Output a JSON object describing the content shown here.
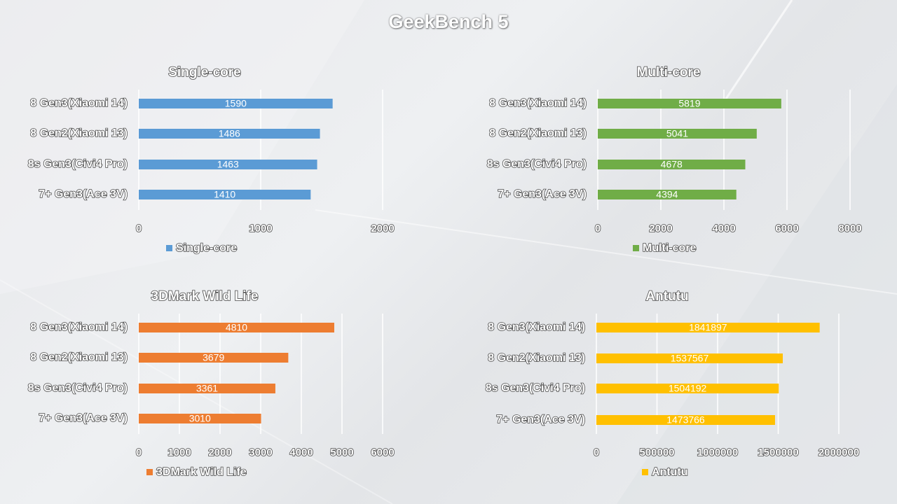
{
  "title": "GeekBench 5",
  "colors": {
    "single": "#5b9bd5",
    "multi": "#70ad47",
    "wildlife": "#ed7d31",
    "antutu": "#ffc000"
  },
  "chart_data": [
    {
      "type": "bar",
      "orientation": "horizontal",
      "title": "Single-core",
      "categories": [
        "8 Gen3(Xiaomi 14)",
        "8 Gen2(Xiaomi 13)",
        "8s Gen3(Civi4 Pro)",
        "7+ Gen3(Ace 3V)"
      ],
      "series": [
        {
          "name": "Single-core",
          "values": [
            1590,
            1486,
            1463,
            1410
          ]
        }
      ],
      "xlim": [
        0,
        2000
      ],
      "ticks": [
        "0",
        "1000",
        "2000"
      ],
      "color": "#5b9bd5",
      "legend": "bottom",
      "grid": true
    },
    {
      "type": "bar",
      "orientation": "horizontal",
      "title": "Multi-core",
      "categories": [
        "8 Gen3(Xiaomi 14)",
        "8 Gen2(Xiaomi 13)",
        "8s Gen3(Civi4 Pro)",
        "7+ Gen3(Ace 3V)"
      ],
      "series": [
        {
          "name": "Multi-core",
          "values": [
            5819,
            5041,
            4678,
            4394
          ]
        }
      ],
      "xlim": [
        0,
        8000
      ],
      "ticks": [
        "0",
        "2000",
        "4000",
        "6000",
        "8000"
      ],
      "color": "#70ad47",
      "legend": "bottom",
      "grid": true
    },
    {
      "type": "bar",
      "orientation": "horizontal",
      "title": "3DMark Wild Life",
      "categories": [
        "8 Gen3(Xiaomi 14)",
        "8 Gen2(Xiaomi 13)",
        "8s Gen3(Civi4 Pro)",
        "7+ Gen3(Ace 3V)"
      ],
      "series": [
        {
          "name": "3DMark Wild Life",
          "values": [
            4810,
            3679,
            3361,
            3010
          ]
        }
      ],
      "xlim": [
        0,
        6000
      ],
      "ticks": [
        "0",
        "1000",
        "2000",
        "3000",
        "4000",
        "5000",
        "6000"
      ],
      "color": "#ed7d31",
      "legend": "bottom",
      "grid": true
    },
    {
      "type": "bar",
      "orientation": "horizontal",
      "title": "Antutu",
      "categories": [
        "8 Gen3(Xiaomi 14)",
        "8 Gen2(Xiaomi 13)",
        "8s Gen3(Civi4 Pro)",
        "7+ Gen3(Ace 3V)"
      ],
      "series": [
        {
          "name": "Antutu",
          "values": [
            1841897,
            1537567,
            1504192,
            1473766
          ]
        }
      ],
      "xlim": [
        0,
        2000000
      ],
      "ticks": [
        "0",
        "500000",
        "1000000",
        "1500000",
        "2000000"
      ],
      "color": "#ffc000",
      "legend": "bottom",
      "grid": true
    }
  ]
}
